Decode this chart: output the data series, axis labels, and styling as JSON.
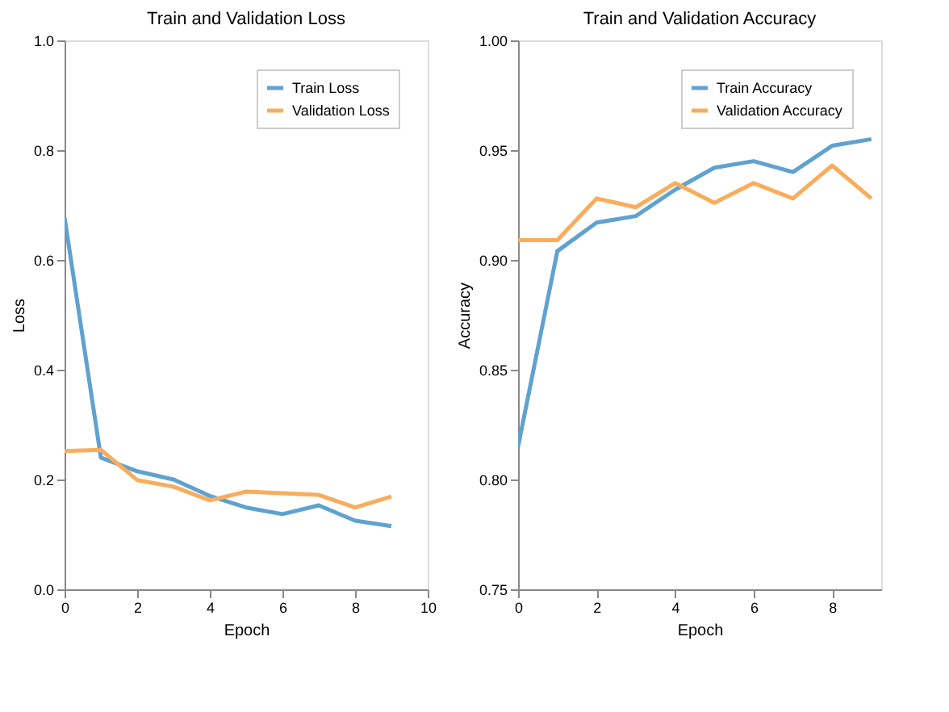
{
  "chart_data": [
    {
      "type": "line",
      "title": "Train and Validation Loss",
      "xlabel": "Epoch",
      "ylabel": "Loss",
      "x": [
        0,
        1,
        2,
        3,
        4,
        5,
        6,
        7,
        8,
        9
      ],
      "series": [
        {
          "name": "Train Loss",
          "color": "#5fa2d0",
          "values": [
            0.677,
            0.24,
            0.215,
            0.2,
            0.17,
            0.149,
            0.137,
            0.153,
            0.125,
            0.115
          ]
        },
        {
          "name": "Validation Loss",
          "color": "#f9ac5c",
          "values": [
            0.252,
            0.254,
            0.199,
            0.187,
            0.162,
            0.178,
            0.175,
            0.172,
            0.149,
            0.169
          ]
        }
      ],
      "xlim": [
        0,
        10
      ],
      "xticks": [
        0,
        2,
        4,
        6,
        8,
        10
      ],
      "ylim": [
        0,
        1.0
      ],
      "yticks": [
        {
          "value": 0,
          "label": "0.0"
        },
        0.2,
        0.4,
        0.6,
        0.8,
        {
          "value": 1,
          "label": "1.0"
        }
      ],
      "grid": false,
      "legend": "top right"
    },
    {
      "type": "line",
      "title": "Train and Validation Accuracy",
      "xlabel": "Epoch",
      "ylabel": "Accuracy",
      "x": [
        0,
        1,
        2,
        3,
        4,
        5,
        6,
        7,
        8,
        9
      ],
      "series": [
        {
          "name": "Train Accuracy",
          "color": "#5fa2d0",
          "values": [
            0.815,
            0.904,
            0.917,
            0.92,
            0.932,
            0.942,
            0.945,
            0.94,
            0.952,
            0.955
          ]
        },
        {
          "name": "Validation Accuracy",
          "color": "#f9ac5c",
          "values": [
            0.909,
            0.909,
            0.928,
            0.924,
            0.935,
            0.926,
            0.935,
            0.928,
            0.943,
            0.928
          ]
        }
      ],
      "xlim": [
        0,
        9.25
      ],
      "xticks": [
        0,
        2,
        4,
        6,
        8
      ],
      "ylim": [
        0.75,
        1.0
      ],
      "yticks": [
        0.75,
        {
          "value": 0.8,
          "label": "0.80"
        },
        0.85,
        {
          "value": 0.9,
          "label": "0.90"
        },
        0.95,
        {
          "value": 1,
          "label": "1.00"
        }
      ],
      "grid": false,
      "legend": "top right"
    }
  ]
}
